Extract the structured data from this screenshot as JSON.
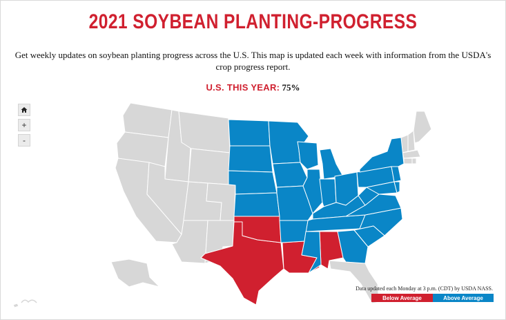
{
  "title": "2021 SOYBEAN PLANTING-PROGRESS",
  "subtitle": "Get weekly updates on soybean planting progress across the U.S. This map is updated each week with information from the USDA's crop progress report.",
  "us_stat": {
    "label": "U.S. THIS YEAR:",
    "value": "75%"
  },
  "controls": {
    "home_icon": "home-icon",
    "zoom_in": "+",
    "zoom_out": "-"
  },
  "legend": {
    "below": {
      "label": "Below Average",
      "color": "#d0202f"
    },
    "above": {
      "label": "Above Average",
      "color": "#0a86c7"
    },
    "no_data_color": "#d7d7d7"
  },
  "update_note": "Data updated each Monday at 3 p.m. (CDT) by USDA NASS.",
  "states": {
    "below_average": [
      "TX",
      "OK",
      "LA",
      "AL"
    ],
    "above_average": [
      "ND",
      "SD",
      "NE",
      "KS",
      "MN",
      "IA",
      "MO",
      "WI",
      "IL",
      "MI",
      "IN",
      "OH",
      "KY",
      "TN",
      "AR",
      "MS",
      "NC",
      "SC",
      "VA",
      "WV",
      "PA",
      "NY",
      "MD",
      "DE",
      "NJ",
      "GA"
    ],
    "no_data": [
      "WA",
      "OR",
      "CA",
      "ID",
      "NV",
      "MT",
      "WY",
      "UT",
      "CO",
      "AZ",
      "NM",
      "FL",
      "ME",
      "NH",
      "VT",
      "MA",
      "CT",
      "RI",
      "AK",
      "HI"
    ]
  }
}
